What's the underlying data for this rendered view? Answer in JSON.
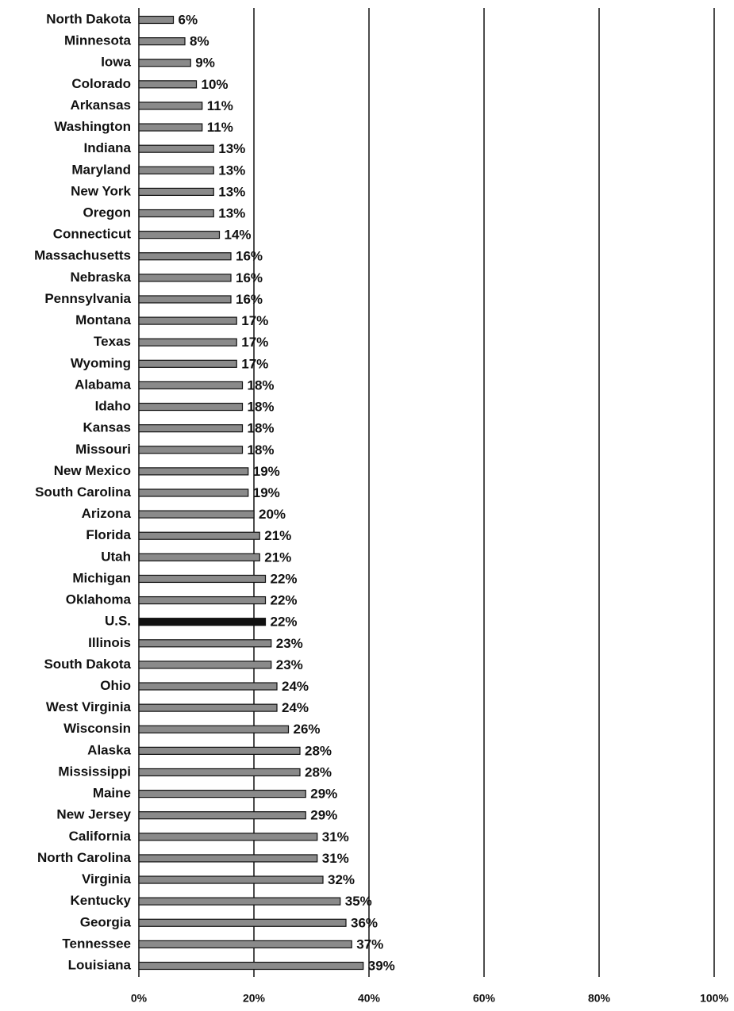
{
  "chart_data": {
    "type": "bar",
    "orientation": "horizontal",
    "categories": [
      "North Dakota",
      "Minnesota",
      "Iowa",
      "Colorado",
      "Arkansas",
      "Washington",
      "Indiana",
      "Maryland",
      "New York",
      "Oregon",
      "Connecticut",
      "Massachusetts",
      "Nebraska",
      "Pennsylvania",
      "Montana",
      "Texas",
      "Wyoming",
      "Alabama",
      "Idaho",
      "Kansas",
      "Missouri",
      "New Mexico",
      "South Carolina",
      "Arizona",
      "Florida",
      "Utah",
      "Michigan",
      "Oklahoma",
      "U.S.",
      "Illinois",
      "South Dakota",
      "Ohio",
      "West Virginia",
      "Wisconsin",
      "Alaska",
      "Mississippi",
      "Maine",
      "New Jersey",
      "California",
      "North Carolina",
      "Virginia",
      "Kentucky",
      "Georgia",
      "Tennessee",
      "Louisiana"
    ],
    "values": [
      6,
      8,
      9,
      10,
      11,
      11,
      13,
      13,
      13,
      13,
      14,
      16,
      16,
      16,
      17,
      17,
      17,
      18,
      18,
      18,
      18,
      19,
      19,
      20,
      21,
      21,
      22,
      22,
      22,
      23,
      23,
      24,
      24,
      26,
      28,
      28,
      29,
      29,
      31,
      31,
      32,
      35,
      36,
      37,
      39
    ],
    "value_labels": [
      "6%",
      "8%",
      "9%",
      "10%",
      "11%",
      "11%",
      "13%",
      "13%",
      "13%",
      "13%",
      "14%",
      "16%",
      "16%",
      "16%",
      "17%",
      "17%",
      "17%",
      "18%",
      "18%",
      "18%",
      "18%",
      "19%",
      "19%",
      "20%",
      "21%",
      "21%",
      "22%",
      "22%",
      "22%",
      "23%",
      "23%",
      "24%",
      "24%",
      "26%",
      "28%",
      "28%",
      "29%",
      "29%",
      "31%",
      "31%",
      "32%",
      "35%",
      "36%",
      "37%",
      "39%"
    ],
    "color": "#8a8a8a",
    "highlight": {
      "category": "U.S.",
      "color": "#111111"
    },
    "xlim": [
      0,
      100
    ],
    "xticks": [
      {
        "value": 0,
        "label": "0%"
      },
      {
        "value": 20,
        "label": "20%"
      },
      {
        "value": 40,
        "label": "40%"
      },
      {
        "value": 60,
        "label": "60%"
      },
      {
        "value": 80,
        "label": "80%"
      },
      {
        "value": 100,
        "label": "100%"
      }
    ],
    "grid": true
  }
}
